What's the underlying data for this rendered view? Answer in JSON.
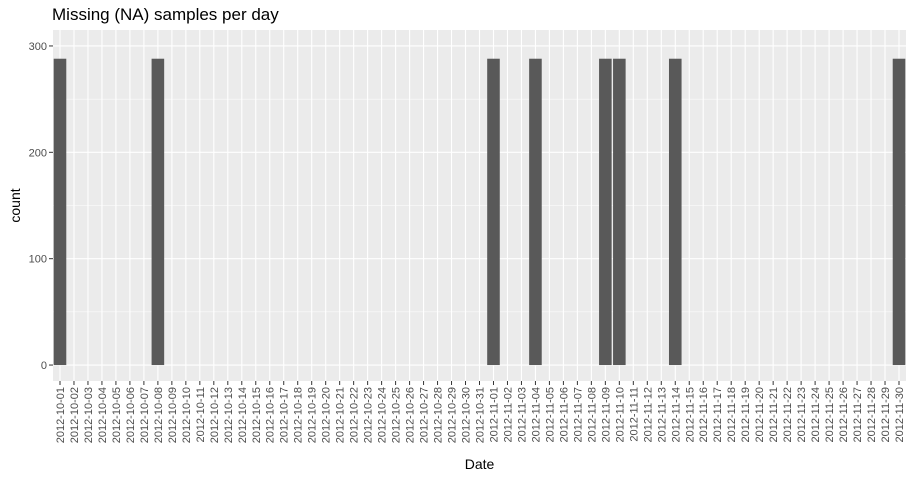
{
  "chart_data": {
    "type": "bar",
    "title": "Missing (NA) samples per day",
    "xlabel": "Date",
    "ylabel": "count",
    "ylim": [
      0,
      300
    ],
    "yticks": [
      0,
      100,
      200,
      300
    ],
    "grid": true,
    "colors": {
      "panel": "#ebebeb",
      "grid_major": "#ffffff",
      "bar": "#595959",
      "tick_text": "#4d4d4d"
    },
    "categories": [
      "2012-10-01",
      "2012-10-02",
      "2012-10-03",
      "2012-10-04",
      "2012-10-05",
      "2012-10-06",
      "2012-10-07",
      "2012-10-08",
      "2012-10-09",
      "2012-10-10",
      "2012-10-11",
      "2012-10-12",
      "2012-10-13",
      "2012-10-14",
      "2012-10-15",
      "2012-10-16",
      "2012-10-17",
      "2012-10-18",
      "2012-10-19",
      "2012-10-20",
      "2012-10-21",
      "2012-10-22",
      "2012-10-23",
      "2012-10-24",
      "2012-10-25",
      "2012-10-26",
      "2012-10-27",
      "2012-10-28",
      "2012-10-29",
      "2012-10-30",
      "2012-10-31",
      "2012-11-01",
      "2012-11-02",
      "2012-11-03",
      "2012-11-04",
      "2012-11-05",
      "2012-11-06",
      "2012-11-07",
      "2012-11-08",
      "2012-11-09",
      "2012-11-10",
      "2012-11-11",
      "2012-11-12",
      "2012-11-13",
      "2012-11-14",
      "2012-11-15",
      "2012-11-16",
      "2012-11-17",
      "2012-11-18",
      "2012-11-19",
      "2012-11-20",
      "2012-11-21",
      "2012-11-22",
      "2012-11-23",
      "2012-11-24",
      "2012-11-25",
      "2012-11-26",
      "2012-11-27",
      "2012-11-28",
      "2012-11-29",
      "2012-11-30"
    ],
    "values": [
      288,
      0,
      0,
      0,
      0,
      0,
      0,
      288,
      0,
      0,
      0,
      0,
      0,
      0,
      0,
      0,
      0,
      0,
      0,
      0,
      0,
      0,
      0,
      0,
      0,
      0,
      0,
      0,
      0,
      0,
      0,
      288,
      0,
      0,
      288,
      0,
      0,
      0,
      0,
      288,
      288,
      0,
      0,
      0,
      288,
      0,
      0,
      0,
      0,
      0,
      0,
      0,
      0,
      0,
      0,
      0,
      0,
      0,
      0,
      0,
      288
    ]
  }
}
